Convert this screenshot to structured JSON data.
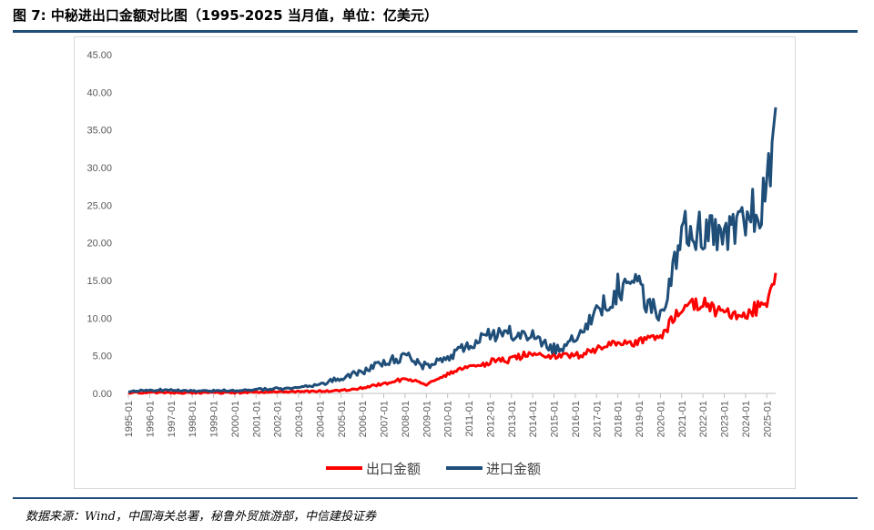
{
  "title": "图 7: 中秘进出口金额对比图（1995-2025 当月值，单位：亿美元）",
  "source": "数据来源：Wind，中国海关总署，秘鲁外贸旅游部，中信建投证券",
  "colors": {
    "export": "#ff0000",
    "import": "#1f4e79",
    "rule": "#1f4e79"
  },
  "chart_data": {
    "type": "line",
    "title": "",
    "xlabel": "",
    "ylabel": "",
    "ylim": [
      0,
      45
    ],
    "y_ticks": [
      "0.00",
      "5.00",
      "10.00",
      "15.00",
      "20.00",
      "25.00",
      "30.00",
      "35.00",
      "40.00",
      "45.00"
    ],
    "x_ticks": [
      "1995-01",
      "1996-01",
      "1997-01",
      "1998-01",
      "1999-01",
      "2000-01",
      "2001-01",
      "2002-01",
      "2003-01",
      "2004-01",
      "2005-01",
      "2006-01",
      "2007-01",
      "2008-01",
      "2009-01",
      "2010-01",
      "2011-01",
      "2012-01",
      "2013-01",
      "2014-01",
      "2015-01",
      "2016-01",
      "2017-01",
      "2018-01",
      "2019-01",
      "2020-01",
      "2021-01",
      "2022-01",
      "2023-01",
      "2024-01",
      "2025-01"
    ],
    "x_range": [
      "1995-01",
      "2025-06"
    ],
    "legend_position": "bottom",
    "grid": false,
    "note": "values are approximate annual readings per January plus mid-2025 endpoint",
    "x": [
      "1995-01",
      "1996-01",
      "1997-01",
      "1998-01",
      "1999-01",
      "2000-01",
      "2001-01",
      "2002-01",
      "2003-01",
      "2004-01",
      "2005-01",
      "2006-01",
      "2007-01",
      "2008-01",
      "2009-01",
      "2010-01",
      "2011-01",
      "2012-01",
      "2013-01",
      "2014-01",
      "2015-01",
      "2016-01",
      "2017-01",
      "2018-01",
      "2019-01",
      "2020-01",
      "2021-01",
      "2022-01",
      "2023-01",
      "2024-01",
      "2025-01",
      "2025-06"
    ],
    "series": [
      {
        "name": "出口金额",
        "color": "#ff0000",
        "values": [
          0.1,
          0.1,
          0.1,
          0.1,
          0.1,
          0.1,
          0.2,
          0.2,
          0.2,
          0.3,
          0.4,
          0.7,
          1.3,
          2.0,
          1.2,
          2.5,
          3.5,
          4.2,
          4.5,
          5.5,
          5.0,
          5.0,
          6.0,
          6.5,
          7.0,
          7.5,
          11.5,
          12.0,
          10.5,
          10.0,
          12.5,
          16.0
        ]
      },
      {
        "name": "进口金额",
        "color": "#1f4e79",
        "values": [
          0.3,
          0.4,
          0.5,
          0.3,
          0.3,
          0.4,
          0.5,
          0.6,
          0.8,
          1.2,
          2.0,
          3.0,
          4.0,
          5.0,
          3.5,
          5.0,
          6.5,
          7.5,
          8.0,
          7.5,
          6.0,
          7.0,
          11.0,
          14.0,
          14.0,
          10.0,
          22.0,
          21.5,
          20.0,
          23.0,
          26.0,
          38.0
        ]
      }
    ]
  }
}
